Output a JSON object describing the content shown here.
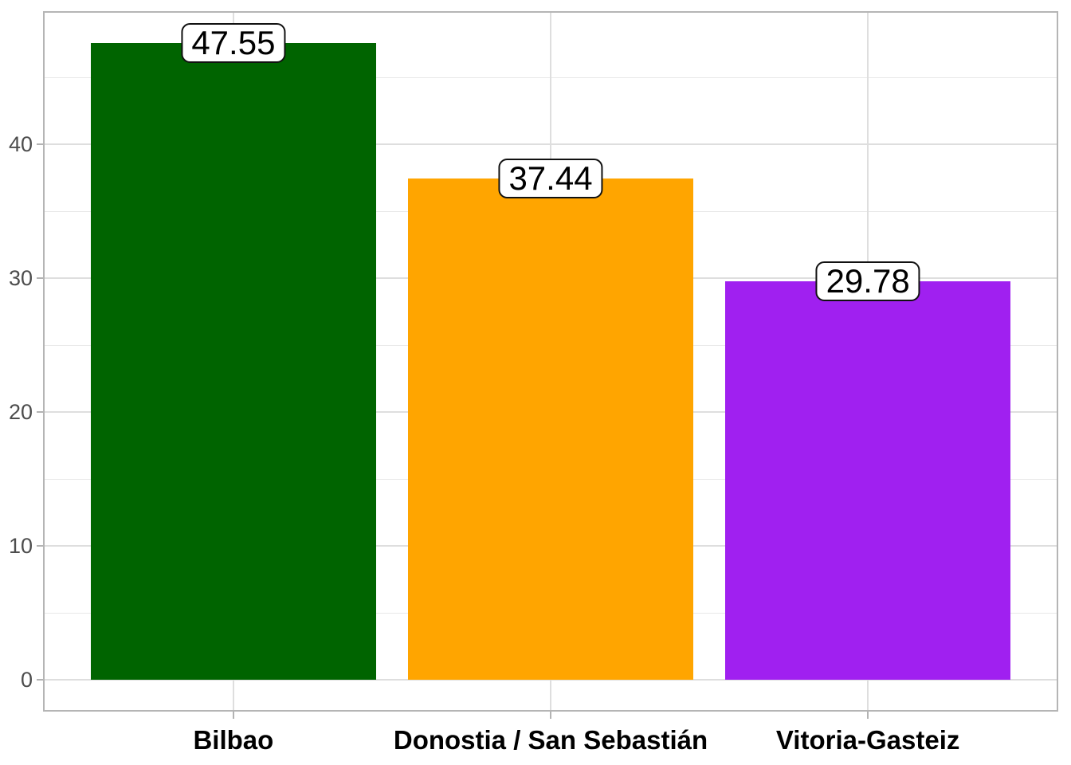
{
  "chart_data": {
    "type": "bar",
    "title": "",
    "xlabel": "",
    "ylabel": "",
    "categories": [
      "Bilbao",
      "Donostia / San Sebastián",
      "Vitoria-Gasteiz"
    ],
    "values": [
      47.55,
      37.44,
      29.78
    ],
    "value_labels": [
      "47.55",
      "37.44",
      "29.78"
    ],
    "bar_colors": [
      "#006400",
      "#FFA500",
      "#A020F0"
    ],
    "ylim": [
      0,
      50
    ],
    "y_major_ticks": [
      0,
      10,
      20,
      30,
      40
    ],
    "y_major_tick_labels": [
      "0",
      "10",
      "20",
      "30",
      "40"
    ],
    "y_minor_ticks": [
      5,
      15,
      25,
      35,
      45
    ],
    "grid": "horizontal major+minor, vertical major at category centers",
    "legend": "none",
    "panel_border": true
  },
  "style": {
    "grid_major_color": "#dedede",
    "grid_minor_color": "#e8e8e8",
    "panel_border_color": "#b5b5b5",
    "axis_tick_color": "#b3b3b3",
    "y_label_color": "#4d4d4d",
    "x_label_color": "#000000",
    "annotation_bg": "#ffffff",
    "annotation_border": "#000000"
  }
}
